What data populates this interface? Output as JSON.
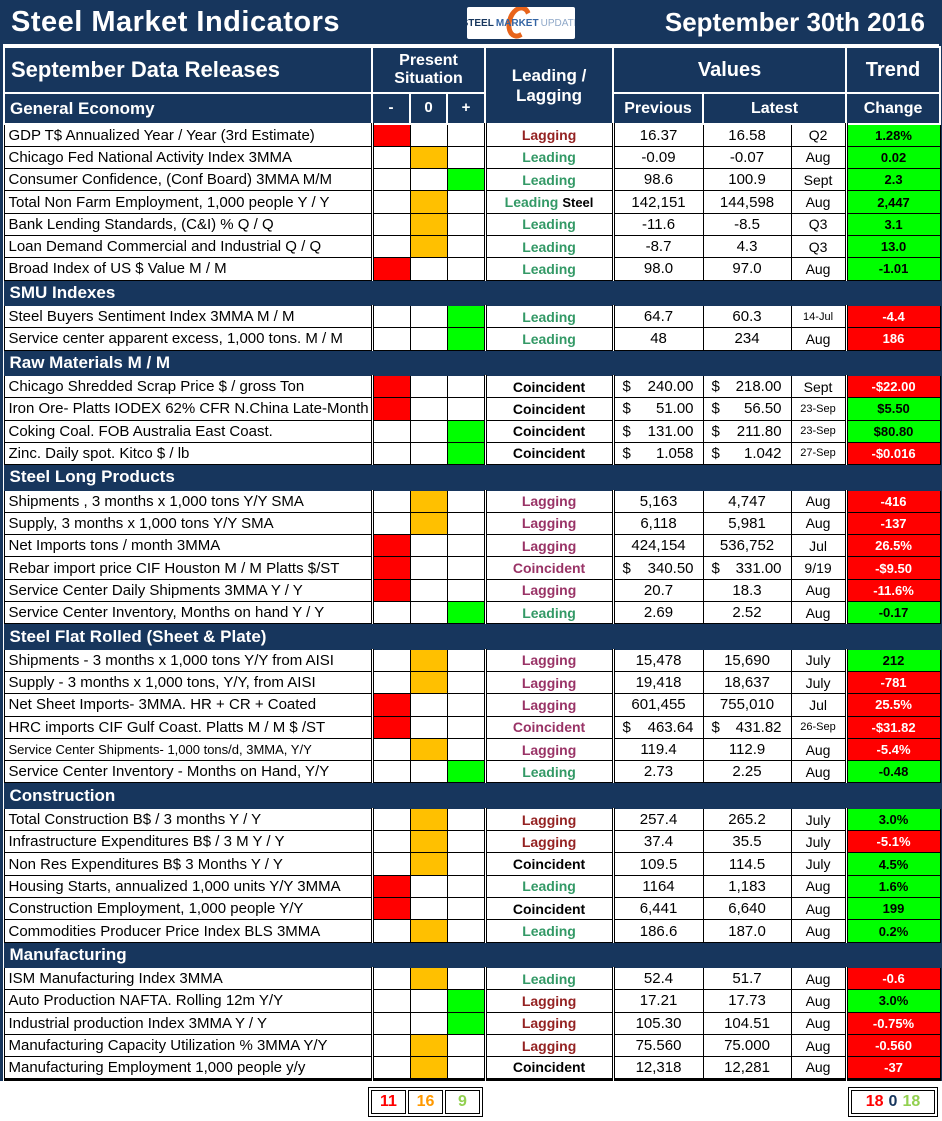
{
  "title": "Steel Market Indicators",
  "report_date": "September 30th 2016",
  "logo": {
    "word1": "STEEL",
    "word2": "MARKET",
    "word3": "UPDATE"
  },
  "headers": {
    "data_releases": "September Data Releases",
    "present_situation": "Present Situation",
    "leading_lagging": "Leading / Lagging",
    "values": "Values",
    "trend": "Trend",
    "minus": "-",
    "zero": "0",
    "plus": "+",
    "previous": "Previous",
    "latest": "Latest",
    "change": "Change"
  },
  "colors": {
    "navy": "#17365D",
    "situation": {
      "minus": "#FF0000",
      "zero": "#FFC000",
      "plus": "#00FF00"
    },
    "indicator": {
      "darkred": "#942222",
      "green": "#339966",
      "purple": "#993366",
      "black": "#000000"
    },
    "change_green_bg": "#00FF00",
    "change_red_bg": "#FF0000",
    "change_green_text": "#000000",
    "change_red_text": "#FFFFFF",
    "summary_red": "#FF0000",
    "summary_orange": "#FF9900",
    "summary_green": "#92D050",
    "summary_zero": "#17365D"
  },
  "sections": [
    {
      "name": "General Economy",
      "inline_header": true,
      "rows": [
        {
          "label": "GDP T$ Annualized Year / Year (3rd Estimate)",
          "sit": "minus",
          "ind": "Lagging",
          "indc": "darkred",
          "prev": "16.37",
          "latest": "16.58",
          "date": "Q2",
          "chg": "1.28%",
          "chgc": "green"
        },
        {
          "label": "Chicago Fed National Activity Index 3MMA",
          "sit": "zero",
          "ind": "Leading",
          "indc": "green",
          "prev": "-0.09",
          "latest": "-0.07",
          "date": "Aug",
          "chg": "0.02",
          "chgc": "green"
        },
        {
          "label": "Consumer Confidence, (Conf Board) 3MMA M/M",
          "sit": "plus",
          "ind": "Leading",
          "indc": "green",
          "prev": "98.6",
          "latest": "100.9",
          "date": "Sept",
          "chg": "2.3",
          "chgc": "green"
        },
        {
          "label": "Total Non Farm Employment, 1,000 people Y / Y",
          "sit": "zero",
          "ind": "Leading",
          "indc": "green",
          "suffix": "Steel",
          "prev": "142,151",
          "latest": "144,598",
          "date": "Aug",
          "chg": "2,447",
          "chgc": "green"
        },
        {
          "label": "Bank Lending Standards, (C&I) % Q / Q",
          "sit": "zero",
          "ind": "Leading",
          "indc": "green",
          "prev": "-11.6",
          "latest": "-8.5",
          "date": "Q3",
          "chg": "3.1",
          "chgc": "green"
        },
        {
          "label": "Loan Demand Commercial and Industrial Q / Q",
          "sit": "zero",
          "ind": "Leading",
          "indc": "green",
          "prev": "-8.7",
          "latest": "4.3",
          "date": "Q3",
          "chg": "13.0",
          "chgc": "green"
        },
        {
          "label": "Broad Index of US $ Value M / M",
          "sit": "minus",
          "ind": "Leading",
          "indc": "green",
          "prev": "98.0",
          "latest": "97.0",
          "date": "Aug",
          "chg": "-1.01",
          "chgc": "green"
        }
      ]
    },
    {
      "name": "SMU Indexes",
      "rows": [
        {
          "label": "Steel Buyers Sentiment Index 3MMA M / M",
          "sit": "plus",
          "ind": "Leading",
          "indc": "green",
          "prev": "64.7",
          "latest": "60.3",
          "date": "14-Jul",
          "date_small": true,
          "chg": "-4.4",
          "chgc": "red"
        },
        {
          "label": "Service center apparent excess, 1,000 tons. M / M",
          "sit": "plus",
          "ind": "Leading",
          "indc": "green",
          "prev": "48",
          "latest": "234",
          "date": "Aug",
          "chg": "186",
          "chgc": "red"
        }
      ]
    },
    {
      "name": "Raw Materials M / M",
      "rows": [
        {
          "label": "Chicago Shredded Scrap Price $ / gross Ton",
          "sit": "minus",
          "ind": "Coincident",
          "indc": "black",
          "prev": "$240.00",
          "latest": "$218.00",
          "date": "Sept",
          "chg": "-$22.00",
          "chgc": "red"
        },
        {
          "label": "Iron Ore- Platts IODEX 62% CFR N.China Late-Month",
          "sit": "minus",
          "ind": "Coincident",
          "indc": "black",
          "prev": "$51.00",
          "latest": "$56.50",
          "date": "23-Sep",
          "date_small": true,
          "chg": "$5.50",
          "chgc": "green"
        },
        {
          "label": "Coking Coal. FOB Australia East Coast.",
          "sit": "plus",
          "ind": "Coincident",
          "indc": "black",
          "prev": "$131.00",
          "latest": "$211.80",
          "date": "23-Sep",
          "date_small": true,
          "chg": "$80.80",
          "chgc": "green"
        },
        {
          "label": "Zinc. Daily spot. Kitco $ / lb",
          "sit": "plus",
          "ind": "Coincident",
          "indc": "black",
          "prev": "$1.058",
          "latest": "$1.042",
          "date": "27-Sep",
          "date_small": true,
          "chg": "-$0.016",
          "chgc": "red"
        }
      ]
    },
    {
      "name": "Steel Long Products",
      "rows": [
        {
          "label": "Shipments , 3 months x 1,000 tons Y/Y SMA",
          "sit": "zero",
          "ind": "Lagging",
          "indc": "purple",
          "prev": "5,163",
          "latest": "4,747",
          "date": "Aug",
          "chg": "-416",
          "chgc": "red"
        },
        {
          "label": "Supply, 3 months x 1,000 tons Y/Y SMA",
          "sit": "zero",
          "ind": "Lagging",
          "indc": "purple",
          "prev": "6,118",
          "latest": "5,981",
          "date": "Aug",
          "chg": "-137",
          "chgc": "red"
        },
        {
          "label": "Net Imports tons / month 3MMA",
          "sit": "minus",
          "ind": "Lagging",
          "indc": "purple",
          "prev": "424,154",
          "latest": "536,752",
          "date": "Jul",
          "chg": "26.5%",
          "chgc": "red"
        },
        {
          "label": "Rebar import price CIF Houston M / M Platts $/ST",
          "sit": "minus",
          "ind": "Coincident",
          "indc": "purple",
          "prev": "$340.50",
          "latest": "$331.00",
          "date": "9/19",
          "chg": "-$9.50",
          "chgc": "red"
        },
        {
          "label": "Service Center Daily Shipments 3MMA Y / Y",
          "sit": "minus",
          "ind": "Lagging",
          "indc": "purple",
          "prev": "20.7",
          "latest": "18.3",
          "date": "Aug",
          "chg": "-11.6%",
          "chgc": "red"
        },
        {
          "label": "Service Center Inventory, Months on hand Y / Y",
          "sit": "plus",
          "ind": "Leading",
          "indc": "green",
          "prev": "2.69",
          "latest": "2.52",
          "date": "Aug",
          "chg": "-0.17",
          "chgc": "green"
        }
      ]
    },
    {
      "name": "Steel Flat Rolled (Sheet & Plate)",
      "rows": [
        {
          "label": "Shipments - 3 months x 1,000 tons Y/Y from AISI",
          "sit": "zero",
          "ind": "Lagging",
          "indc": "purple",
          "prev": "15,478",
          "latest": "15,690",
          "date": "July",
          "chg": "212",
          "chgc": "green"
        },
        {
          "label": "Supply - 3 months x 1,000 tons, Y/Y, from AISI",
          "sit": "zero",
          "ind": "Lagging",
          "indc": "purple",
          "prev": "19,418",
          "latest": "18,637",
          "date": "July",
          "chg": "-781",
          "chgc": "red"
        },
        {
          "label": "Net Sheet Imports- 3MMA. HR + CR + Coated",
          "sit": "minus",
          "ind": "Lagging",
          "indc": "purple",
          "prev": "601,455",
          "latest": "755,010",
          "date": "Jul",
          "chg": "25.5%",
          "chgc": "red"
        },
        {
          "label": "HRC imports CIF Gulf Coast. Platts M / M $ /ST",
          "sit": "minus",
          "ind": "Coincident",
          "indc": "purple",
          "prev": "$463.64",
          "latest": "$431.82",
          "date": "26-Sep",
          "date_small": true,
          "chg": "-$31.82",
          "chgc": "red"
        },
        {
          "label": "Service Center Shipments- 1,000 tons/d, 3MMA, Y/Y",
          "sit": "zero",
          "ind": "Lagging",
          "indc": "purple",
          "prev": "119.4",
          "latest": "112.9",
          "date": "Aug",
          "chg": "-5.4%",
          "chgc": "red",
          "label_small": true
        },
        {
          "label": "Service Center Inventory - Months on Hand, Y/Y",
          "sit": "plus",
          "ind": "Leading",
          "indc": "green",
          "prev": "2.73",
          "latest": "2.25",
          "date": "Aug",
          "chg": "-0.48",
          "chgc": "green"
        }
      ]
    },
    {
      "name": "Construction",
      "rows": [
        {
          "label": "Total Construction B$ /  3 months Y / Y",
          "sit": "zero",
          "ind": "Lagging",
          "indc": "darkred",
          "prev": "257.4",
          "latest": "265.2",
          "date": "July",
          "chg": "3.0%",
          "chgc": "green"
        },
        {
          "label": "Infrastructure Expenditures B$ / 3 M    Y / Y",
          "sit": "zero",
          "ind": "Lagging",
          "indc": "darkred",
          "prev": "37.4",
          "latest": "35.5",
          "date": "July",
          "chg": "-5.1%",
          "chgc": "red"
        },
        {
          "label": "Non Res Expenditures B$  3 Months    Y / Y",
          "sit": "zero",
          "ind": "Coincident",
          "indc": "black",
          "prev": "109.5",
          "latest": "114.5",
          "date": "July",
          "chg": "4.5%",
          "chgc": "green"
        },
        {
          "label": "Housing Starts, annualized 1,000 units Y/Y 3MMA",
          "sit": "minus",
          "ind": "Leading",
          "indc": "green",
          "prev": "1164",
          "latest": "1,183",
          "date": "Aug",
          "chg": "1.6%",
          "chgc": "green"
        },
        {
          "label": "Construction Employment, 1,000 people Y/Y",
          "sit": "minus",
          "ind": "Coincident",
          "indc": "black",
          "prev": "6,441",
          "latest": "6,640",
          "date": "Aug",
          "chg": "199",
          "chgc": "green"
        },
        {
          "label": "Commodities Producer Price Index BLS 3MMA",
          "sit": "zero",
          "ind": "Leading",
          "indc": "green",
          "prev": "186.6",
          "latest": "187.0",
          "date": "Aug",
          "chg": "0.2%",
          "chgc": "green"
        }
      ]
    },
    {
      "name": "Manufacturing",
      "rows": [
        {
          "label": "ISM Manufacturing Index 3MMA",
          "sit": "zero",
          "ind": "Leading",
          "indc": "green",
          "prev": "52.4",
          "latest": "51.7",
          "date": "Aug",
          "chg": "-0.6",
          "chgc": "red"
        },
        {
          "label": "Auto Production NAFTA. Rolling 12m Y/Y",
          "sit": "plus",
          "ind": "Lagging",
          "indc": "darkred",
          "prev": "17.21",
          "latest": "17.73",
          "date": "Aug",
          "chg": "3.0%",
          "chgc": "green"
        },
        {
          "label": "Industrial production Index 3MMA Y / Y",
          "sit": "plus",
          "ind": "Lagging",
          "indc": "darkred",
          "prev": "105.30",
          "latest": "104.51",
          "date": "Aug",
          "chg": "-0.75%",
          "chgc": "red"
        },
        {
          "label": "Manufacturing Capacity Utilization % 3MMA Y/Y",
          "sit": "zero",
          "ind": "Lagging",
          "indc": "darkred",
          "prev": "75.560",
          "latest": "75.000",
          "date": "Aug",
          "chg": "-0.560",
          "chgc": "red"
        },
        {
          "label": "Manufacturing Employment 1,000 people y/y",
          "sit": "zero",
          "ind": "Coincident",
          "indc": "black",
          "prev": "12,318",
          "latest": "12,281",
          "date": "Aug",
          "chg": "-37",
          "chgc": "red"
        }
      ]
    }
  ],
  "summary": {
    "negative_count": "11",
    "neutral_count": "16",
    "positive_count": "9",
    "trend_down_count": "18",
    "trend_flat_count": "0",
    "trend_up_count": "18"
  }
}
